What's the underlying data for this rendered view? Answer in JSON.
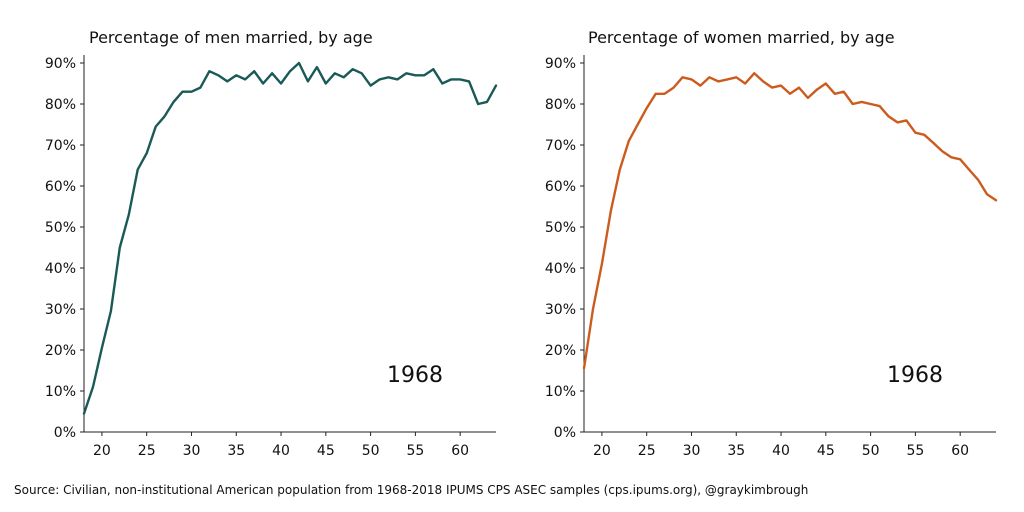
{
  "source_note": "Source: Civilian, non-institutional American population from 1968-2018 IPUMS CPS ASEC samples (cps.ipums.org), @graykimbrough",
  "chart_data": [
    {
      "type": "line",
      "title": "Percentage of men married, by age",
      "annotation": "1968",
      "color": "#1a5a56",
      "xlim": [
        18,
        64
      ],
      "ylim": [
        0,
        90
      ],
      "xticks": [
        20,
        25,
        30,
        35,
        40,
        45,
        50,
        55,
        60
      ],
      "yticks": [
        0,
        10,
        20,
        30,
        40,
        50,
        60,
        70,
        80,
        90
      ],
      "ytick_labels": [
        "0%",
        "10%",
        "20%",
        "30%",
        "40%",
        "50%",
        "60%",
        "70%",
        "80%",
        "90%"
      ],
      "xlabel": "",
      "ylabel": "",
      "x": [
        18,
        19,
        20,
        21,
        22,
        23,
        24,
        25,
        26,
        27,
        28,
        29,
        30,
        31,
        32,
        33,
        34,
        35,
        36,
        37,
        38,
        39,
        40,
        41,
        42,
        43,
        44,
        45,
        46,
        47,
        48,
        49,
        50,
        51,
        52,
        53,
        54,
        55,
        56,
        57,
        58,
        59,
        60,
        61,
        62,
        63,
        64
      ],
      "values": [
        4.5,
        11,
        20.5,
        29.5,
        45,
        53,
        64,
        68,
        74.5,
        77,
        80.5,
        83,
        83,
        84,
        88,
        87,
        85.5,
        87,
        86,
        88,
        85,
        87.5,
        85,
        88,
        90,
        85.5,
        89,
        85,
        87.5,
        86.5,
        88.5,
        87.5,
        84.5,
        86,
        86.5,
        86,
        87.5,
        87,
        87,
        88.5,
        85,
        86,
        86,
        85.5,
        80,
        80.5,
        84.5
      ]
    },
    {
      "type": "line",
      "title": "Percentage of women married, by age",
      "annotation": "1968",
      "color": "#cc5c1e",
      "xlim": [
        18,
        64
      ],
      "ylim": [
        0,
        90
      ],
      "xticks": [
        20,
        25,
        30,
        35,
        40,
        45,
        50,
        55,
        60
      ],
      "yticks": [
        0,
        10,
        20,
        30,
        40,
        50,
        60,
        70,
        80,
        90
      ],
      "ytick_labels": [
        "0%",
        "10%",
        "20%",
        "30%",
        "40%",
        "50%",
        "60%",
        "70%",
        "80%",
        "90%"
      ],
      "xlabel": "",
      "ylabel": "",
      "x": [
        18,
        19,
        20,
        21,
        22,
        23,
        24,
        25,
        26,
        27,
        28,
        29,
        30,
        31,
        32,
        33,
        34,
        35,
        36,
        37,
        38,
        39,
        40,
        41,
        42,
        43,
        44,
        45,
        46,
        47,
        48,
        49,
        50,
        51,
        52,
        53,
        54,
        55,
        56,
        57,
        58,
        59,
        60,
        61,
        62,
        63,
        64
      ],
      "values": [
        15.5,
        30,
        41,
        54,
        64,
        71,
        75,
        79,
        82.5,
        82.5,
        84,
        86.5,
        86,
        84.5,
        86.5,
        85.5,
        86,
        86.5,
        85,
        87.5,
        85.5,
        84,
        84.5,
        82.5,
        84,
        81.5,
        83.5,
        85,
        82.5,
        83,
        80,
        80.5,
        80,
        79.5,
        77,
        75.5,
        76,
        73,
        72.5,
        70.5,
        68.5,
        67,
        66.5,
        64,
        61.5,
        58,
        56.5
      ]
    }
  ]
}
